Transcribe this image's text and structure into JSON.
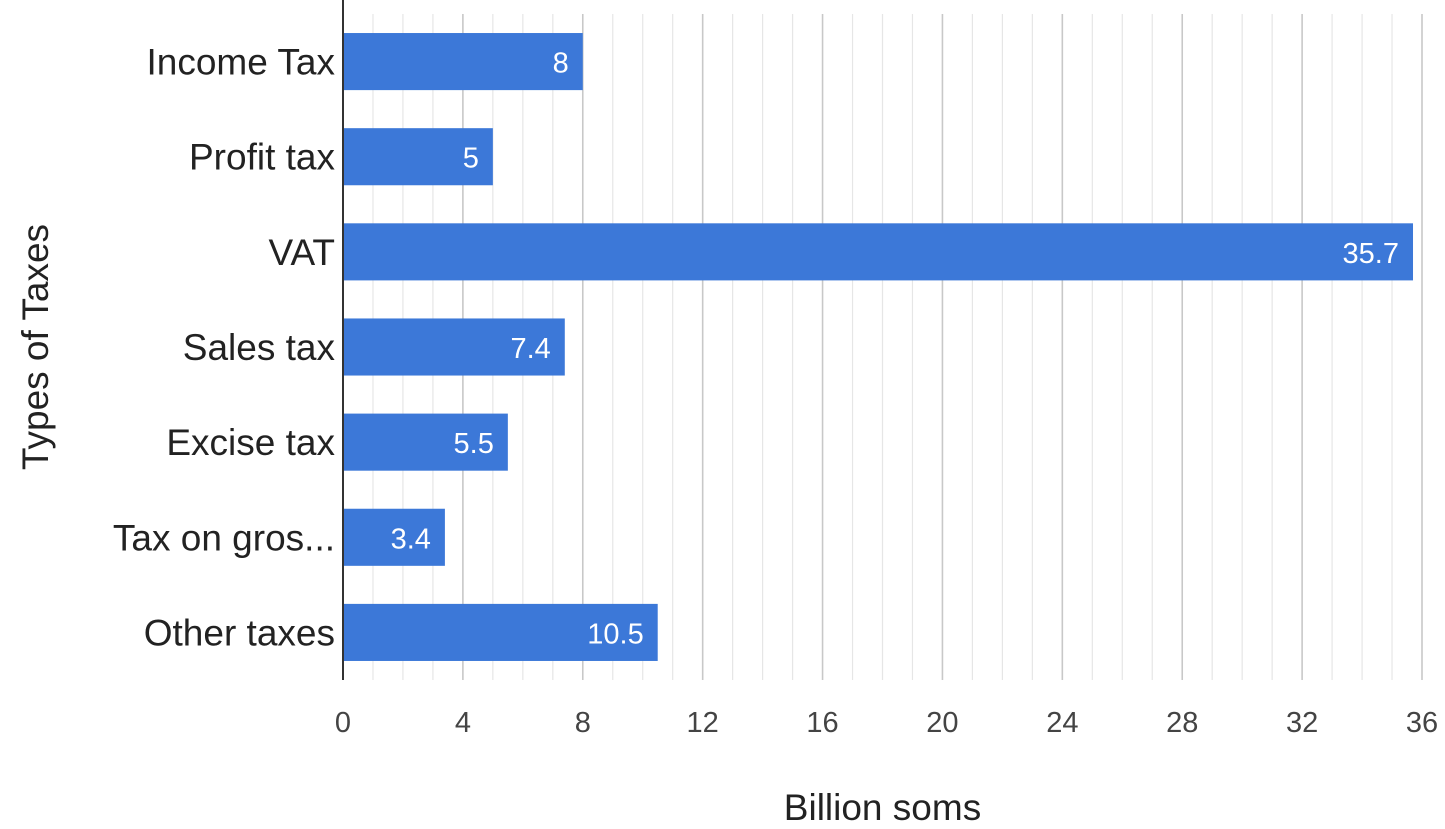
{
  "chart_data": {
    "type": "bar",
    "orientation": "horizontal",
    "title": "",
    "xlabel": "Billion soms",
    "ylabel": "Types of Taxes",
    "categories": [
      "Income Tax",
      "Profit tax",
      "VAT",
      "Sales tax",
      "Excise tax",
      "Tax on gros...",
      "Other taxes"
    ],
    "values": [
      8,
      5,
      35.7,
      7.4,
      5.5,
      3.4,
      10.5
    ],
    "data_labels": [
      "8",
      "5",
      "35.7",
      "7.4",
      "5.5",
      "3.4",
      "10.5"
    ],
    "xlim": [
      0,
      36
    ],
    "x_ticks": [
      "0",
      "4",
      "8",
      "12",
      "16",
      "20",
      "24",
      "28",
      "32",
      "36"
    ],
    "grid": true,
    "legend": "none",
    "colors": {
      "bar": "#3c78d8"
    }
  }
}
